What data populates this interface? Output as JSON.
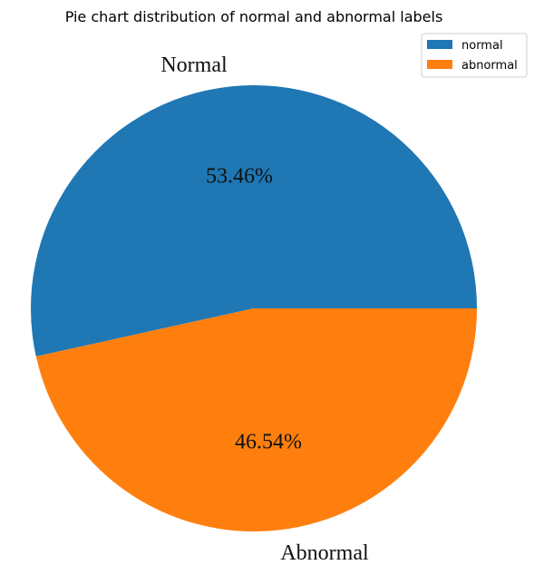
{
  "chart_data": {
    "type": "pie",
    "title": "Pie chart distribution of normal and abnormal labels",
    "slices": [
      {
        "label": "Normal",
        "legend": "normal",
        "value": 53.46,
        "pct_text": "53.46%",
        "color": "#1f77b4"
      },
      {
        "label": "Abnormal",
        "legend": "abnormal",
        "value": 46.54,
        "pct_text": "46.54%",
        "color": "#ff7f0e"
      }
    ],
    "start_angle_deg": 0,
    "direction": "counterclockwise",
    "legend_position": "top-right"
  }
}
